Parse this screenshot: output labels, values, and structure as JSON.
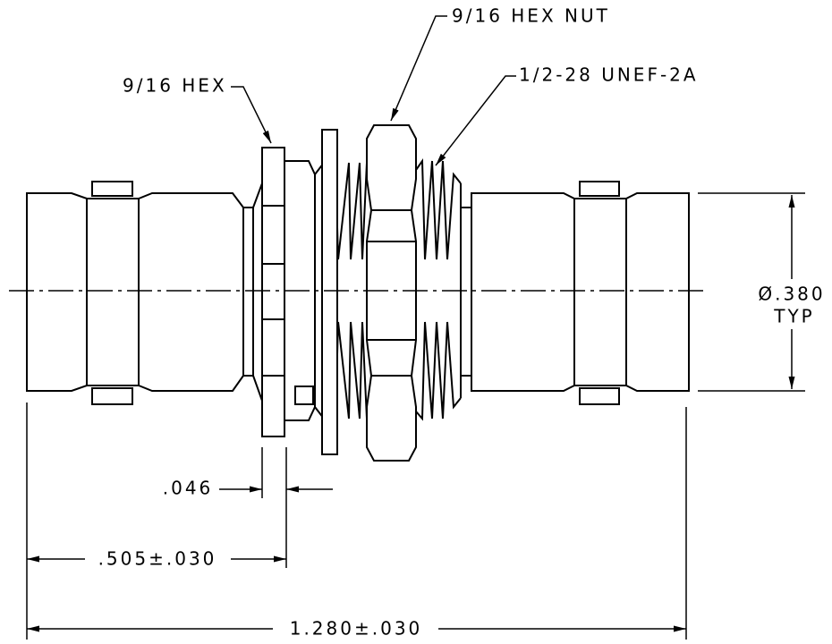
{
  "labels": {
    "hex_nut": "9/16 HEX NUT",
    "hex": "9/16 HEX",
    "thread": "1/2-28 UNEF-2A",
    "diameter": "Ø.380",
    "diameter_note": "TYP"
  },
  "dimensions": {
    "gap": ".046",
    "flange": ".505±.030",
    "overall": "1.280±.030"
  }
}
